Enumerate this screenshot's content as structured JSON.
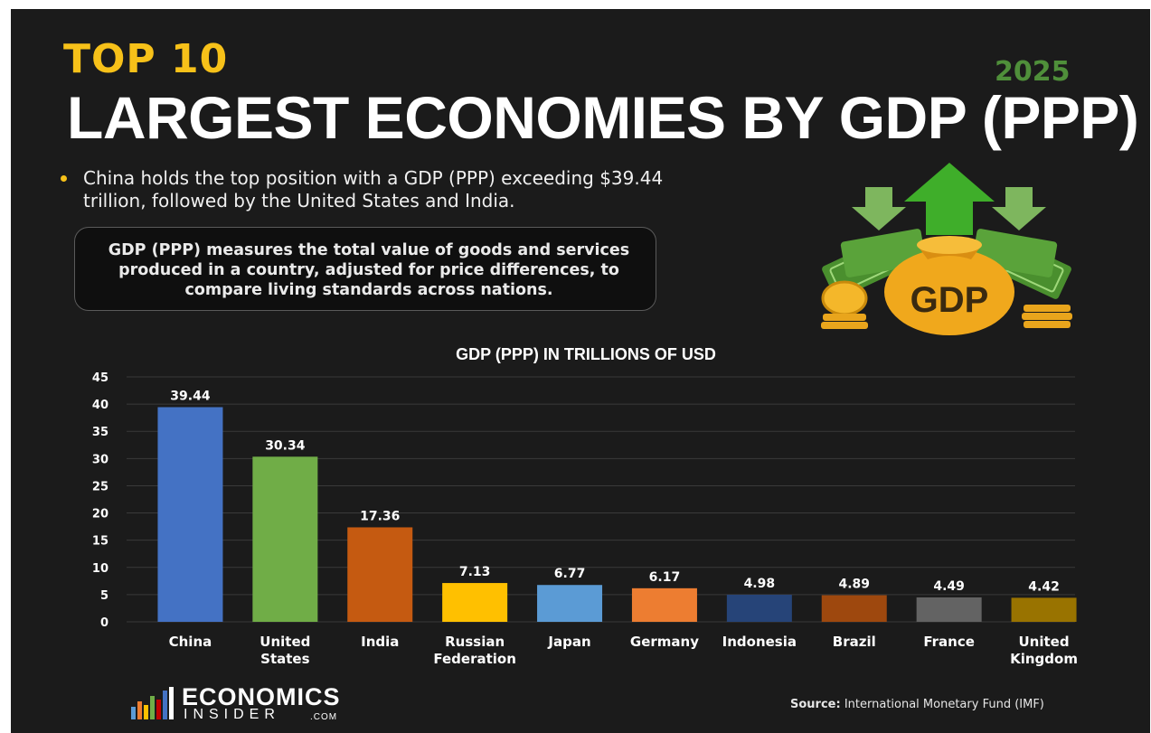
{
  "header": {
    "kicker": "TOP 10",
    "year": "2025",
    "headline": "LARGEST ECONOMIES BY GDP (PPP)"
  },
  "intro": {
    "bullet": "China holds the top position with a GDP (PPP) exceeding $39.44 trillion, followed by the United States and India.",
    "definition": "GDP (PPP) measures the total value of goods and services produced in a country, adjusted for price differences, to compare living standards across nations."
  },
  "illustration": {
    "bag_label": "GDP",
    "icons": [
      "money-bag-icon",
      "up-arrow-icon",
      "coin-stack-icon",
      "banknote-icon"
    ]
  },
  "chart_data": {
    "type": "bar",
    "title": "GDP (PPP) IN TRILLIONS OF USD",
    "xlabel": "",
    "ylabel": "",
    "ylim": [
      0,
      45
    ],
    "yticks": [
      0,
      5,
      10,
      15,
      20,
      25,
      30,
      35,
      40,
      45
    ],
    "grid": true,
    "categories": [
      [
        "China"
      ],
      [
        "United",
        "States"
      ],
      [
        "India"
      ],
      [
        "Russian",
        "Federation"
      ],
      [
        "Japan"
      ],
      [
        "Germany"
      ],
      [
        "Indonesia"
      ],
      [
        "Brazil"
      ],
      [
        "France"
      ],
      [
        "United",
        "Kingdom"
      ]
    ],
    "values": [
      39.44,
      30.34,
      17.36,
      7.13,
      6.77,
      6.17,
      4.98,
      4.89,
      4.49,
      4.42
    ],
    "value_labels": [
      "39.44",
      "30.34",
      "17.36",
      "7.13",
      "6.77",
      "6.17",
      "4.98",
      "4.89",
      "4.49",
      "4.42"
    ],
    "colors": [
      "#4472c4",
      "#70ad47",
      "#c55a11",
      "#ffc000",
      "#5b9bd5",
      "#ed7d31",
      "#264478",
      "#9e480e",
      "#636363",
      "#997300"
    ]
  },
  "footer": {
    "logo_word1": "ECONOMICS",
    "logo_word2": "INSIDER",
    "logo_word3": ".COM",
    "source_label": "Source:",
    "source_text": "International Monetary Fund (IMF)"
  },
  "colors": {
    "background": "#1b1b1b",
    "accent_yellow": "#f7c119",
    "accent_green": "#4f8f3a"
  }
}
